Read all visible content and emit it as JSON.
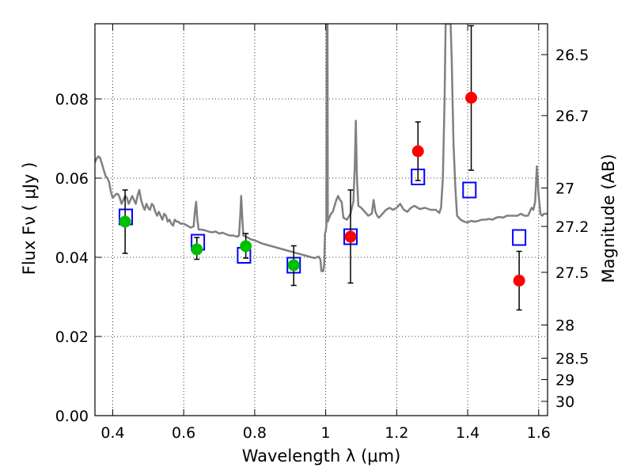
{
  "chart_data": {
    "type": "scatter",
    "title": "",
    "xlabel": "Wavelength  λ (μm)",
    "ylabel": "Flux  Fν  ( μJy )",
    "ylabel_right": "Magnitude (AB)",
    "xlim": [
      0.35,
      1.625
    ],
    "ylim": [
      0.0,
      0.099
    ],
    "grid": true,
    "x_ticks": [
      0.4,
      0.6,
      0.8,
      1.0,
      1.2,
      1.4,
      1.6
    ],
    "x_tick_labels": [
      "0.4",
      "0.6",
      "0.8",
      "1",
      "1.2",
      "1.4",
      "1.6"
    ],
    "y_ticks": [
      0.0,
      0.02,
      0.04,
      0.06,
      0.08
    ],
    "y_tick_labels": [
      "0.00",
      "0.02",
      "0.04",
      "0.06",
      "0.08"
    ],
    "right_ticks": [
      {
        "label": "26.5",
        "flux": 0.0912
      },
      {
        "label": "26.7",
        "flux": 0.0758
      },
      {
        "label": "27",
        "flux": 0.0575
      },
      {
        "label": "27.2",
        "flux": 0.0478
      },
      {
        "label": "27.5",
        "flux": 0.0362
      },
      {
        "label": "28",
        "flux": 0.0229
      },
      {
        "label": "28.5",
        "flux": 0.0145
      },
      {
        "label": "29",
        "flux": 0.0091
      },
      {
        "label": "30",
        "flux": 0.0036
      }
    ],
    "series": [
      {
        "kind": "line",
        "color": "#808080",
        "points": [
          [
            0.35,
            0.064
          ],
          [
            0.355,
            0.065
          ],
          [
            0.36,
            0.0655
          ],
          [
            0.365,
            0.065
          ],
          [
            0.37,
            0.0635
          ],
          [
            0.375,
            0.062
          ],
          [
            0.38,
            0.0605
          ],
          [
            0.385,
            0.06
          ],
          [
            0.39,
            0.059
          ],
          [
            0.395,
            0.0565
          ],
          [
            0.4,
            0.055
          ],
          [
            0.405,
            0.0555
          ],
          [
            0.41,
            0.056
          ],
          [
            0.415,
            0.056
          ],
          [
            0.42,
            0.055
          ],
          [
            0.425,
            0.0535
          ],
          [
            0.43,
            0.0545
          ],
          [
            0.435,
            0.0555
          ],
          [
            0.44,
            0.055
          ],
          [
            0.445,
            0.0535
          ],
          [
            0.45,
            0.0545
          ],
          [
            0.455,
            0.0555
          ],
          [
            0.46,
            0.0545
          ],
          [
            0.465,
            0.0535
          ],
          [
            0.47,
            0.0555
          ],
          [
            0.475,
            0.057
          ],
          [
            0.48,
            0.0545
          ],
          [
            0.485,
            0.053
          ],
          [
            0.49,
            0.052
          ],
          [
            0.495,
            0.0535
          ],
          [
            0.5,
            0.0525
          ],
          [
            0.505,
            0.052
          ],
          [
            0.51,
            0.0535
          ],
          [
            0.515,
            0.053
          ],
          [
            0.52,
            0.0515
          ],
          [
            0.525,
            0.0505
          ],
          [
            0.53,
            0.0515
          ],
          [
            0.535,
            0.0505
          ],
          [
            0.54,
            0.0495
          ],
          [
            0.545,
            0.051
          ],
          [
            0.55,
            0.0505
          ],
          [
            0.555,
            0.049
          ],
          [
            0.56,
            0.0495
          ],
          [
            0.565,
            0.0485
          ],
          [
            0.57,
            0.048
          ],
          [
            0.575,
            0.0495
          ],
          [
            0.58,
            0.049
          ],
          [
            0.585,
            0.049
          ],
          [
            0.59,
            0.0485
          ],
          [
            0.6,
            0.0485
          ],
          [
            0.61,
            0.048
          ],
          [
            0.62,
            0.0475
          ],
          [
            0.628,
            0.0478
          ],
          [
            0.632,
            0.052
          ],
          [
            0.635,
            0.054
          ],
          [
            0.638,
            0.05
          ],
          [
            0.642,
            0.047
          ],
          [
            0.65,
            0.047
          ],
          [
            0.66,
            0.0468
          ],
          [
            0.67,
            0.0465
          ],
          [
            0.68,
            0.0463
          ],
          [
            0.69,
            0.0465
          ],
          [
            0.7,
            0.046
          ],
          [
            0.71,
            0.0462
          ],
          [
            0.72,
            0.0458
          ],
          [
            0.73,
            0.0455
          ],
          [
            0.74,
            0.0455
          ],
          [
            0.75,
            0.0452
          ],
          [
            0.756,
            0.0455
          ],
          [
            0.759,
            0.05
          ],
          [
            0.762,
            0.0555
          ],
          [
            0.765,
            0.05
          ],
          [
            0.768,
            0.0455
          ],
          [
            0.78,
            0.045
          ],
          [
            0.79,
            0.0445
          ],
          [
            0.8,
            0.0443
          ],
          [
            0.82,
            0.0435
          ],
          [
            0.84,
            0.043
          ],
          [
            0.86,
            0.0425
          ],
          [
            0.88,
            0.042
          ],
          [
            0.9,
            0.0415
          ],
          [
            0.92,
            0.041
          ],
          [
            0.94,
            0.0405
          ],
          [
            0.96,
            0.04
          ],
          [
            0.97,
            0.0398
          ],
          [
            0.98,
            0.0402
          ],
          [
            0.985,
            0.0395
          ],
          [
            0.988,
            0.0365
          ],
          [
            0.993,
            0.0365
          ],
          [
            0.996,
            0.0385
          ],
          [
            0.998,
            0.046
          ],
          [
            1.0,
            0.0465
          ],
          [
            1.002,
            0.048
          ],
          [
            1.003,
            0.099
          ],
          [
            1.005,
            0.099
          ],
          [
            1.006,
            0.049
          ],
          [
            1.01,
            0.05
          ],
          [
            1.015,
            0.051
          ],
          [
            1.02,
            0.0515
          ],
          [
            1.025,
            0.053
          ],
          [
            1.03,
            0.0545
          ],
          [
            1.035,
            0.0555
          ],
          [
            1.04,
            0.0545
          ],
          [
            1.045,
            0.054
          ],
          [
            1.05,
            0.05
          ],
          [
            1.06,
            0.0495
          ],
          [
            1.07,
            0.051
          ],
          [
            1.078,
            0.054
          ],
          [
            1.082,
            0.063
          ],
          [
            1.085,
            0.0745
          ],
          [
            1.088,
            0.06
          ],
          [
            1.092,
            0.053
          ],
          [
            1.1,
            0.0525
          ],
          [
            1.11,
            0.0515
          ],
          [
            1.12,
            0.0505
          ],
          [
            1.13,
            0.051
          ],
          [
            1.135,
            0.0545
          ],
          [
            1.14,
            0.0515
          ],
          [
            1.145,
            0.0505
          ],
          [
            1.15,
            0.05
          ],
          [
            1.16,
            0.051
          ],
          [
            1.17,
            0.052
          ],
          [
            1.18,
            0.0525
          ],
          [
            1.19,
            0.052
          ],
          [
            1.2,
            0.0525
          ],
          [
            1.21,
            0.0535
          ],
          [
            1.22,
            0.052
          ],
          [
            1.23,
            0.0515
          ],
          [
            1.24,
            0.0525
          ],
          [
            1.25,
            0.053
          ],
          [
            1.265,
            0.0522
          ],
          [
            1.28,
            0.0525
          ],
          [
            1.295,
            0.052
          ],
          [
            1.31,
            0.052
          ],
          [
            1.32,
            0.0512
          ],
          [
            1.325,
            0.0525
          ],
          [
            1.33,
            0.06
          ],
          [
            1.335,
            0.08
          ],
          [
            1.338,
            0.099
          ],
          [
            1.352,
            0.099
          ],
          [
            1.355,
            0.09
          ],
          [
            1.36,
            0.069
          ],
          [
            1.365,
            0.058
          ],
          [
            1.37,
            0.0505
          ],
          [
            1.38,
            0.0495
          ],
          [
            1.39,
            0.049
          ],
          [
            1.4,
            0.0488
          ],
          [
            1.41,
            0.0492
          ],
          [
            1.42,
            0.049
          ],
          [
            1.43,
            0.0492
          ],
          [
            1.44,
            0.0495
          ],
          [
            1.45,
            0.0495
          ],
          [
            1.46,
            0.0497
          ],
          [
            1.47,
            0.0495
          ],
          [
            1.48,
            0.05
          ],
          [
            1.49,
            0.0502
          ],
          [
            1.5,
            0.05
          ],
          [
            1.51,
            0.0505
          ],
          [
            1.52,
            0.0505
          ],
          [
            1.53,
            0.0505
          ],
          [
            1.54,
            0.0505
          ],
          [
            1.55,
            0.051
          ],
          [
            1.56,
            0.0505
          ],
          [
            1.57,
            0.0505
          ],
          [
            1.575,
            0.0515
          ],
          [
            1.58,
            0.0525
          ],
          [
            1.585,
            0.052
          ],
          [
            1.59,
            0.054
          ],
          [
            1.595,
            0.063
          ],
          [
            1.6,
            0.0555
          ],
          [
            1.605,
            0.051
          ],
          [
            1.61,
            0.0505
          ],
          [
            1.615,
            0.051
          ],
          [
            1.625,
            0.051
          ]
        ]
      },
      {
        "kind": "open-square",
        "color": "#0000ff",
        "points": [
          [
            0.437,
            0.0502
          ],
          [
            0.64,
            0.0438
          ],
          [
            0.77,
            0.0405
          ],
          [
            0.91,
            0.038
          ],
          [
            1.07,
            0.0452
          ],
          [
            1.26,
            0.0603
          ],
          [
            1.405,
            0.057
          ],
          [
            1.545,
            0.045
          ]
        ]
      },
      {
        "kind": "filled-circle",
        "color": "#00bf00",
        "points": [
          [
            0.435,
            0.049,
            0.041,
            0.057
          ],
          [
            0.637,
            0.042,
            0.0395,
            0.045
          ],
          [
            0.775,
            0.0428,
            0.0398,
            0.046
          ],
          [
            0.91,
            0.038,
            0.0329,
            0.0429
          ]
        ]
      },
      {
        "kind": "filled-circle",
        "color": "#ff0000",
        "points": [
          [
            1.07,
            0.0452,
            0.0335,
            0.057
          ],
          [
            1.26,
            0.0668,
            0.0594,
            0.0742
          ],
          [
            1.41,
            0.0803,
            0.062,
            0.0985
          ],
          [
            1.545,
            0.0341,
            0.0267,
            0.0415
          ]
        ]
      }
    ]
  }
}
